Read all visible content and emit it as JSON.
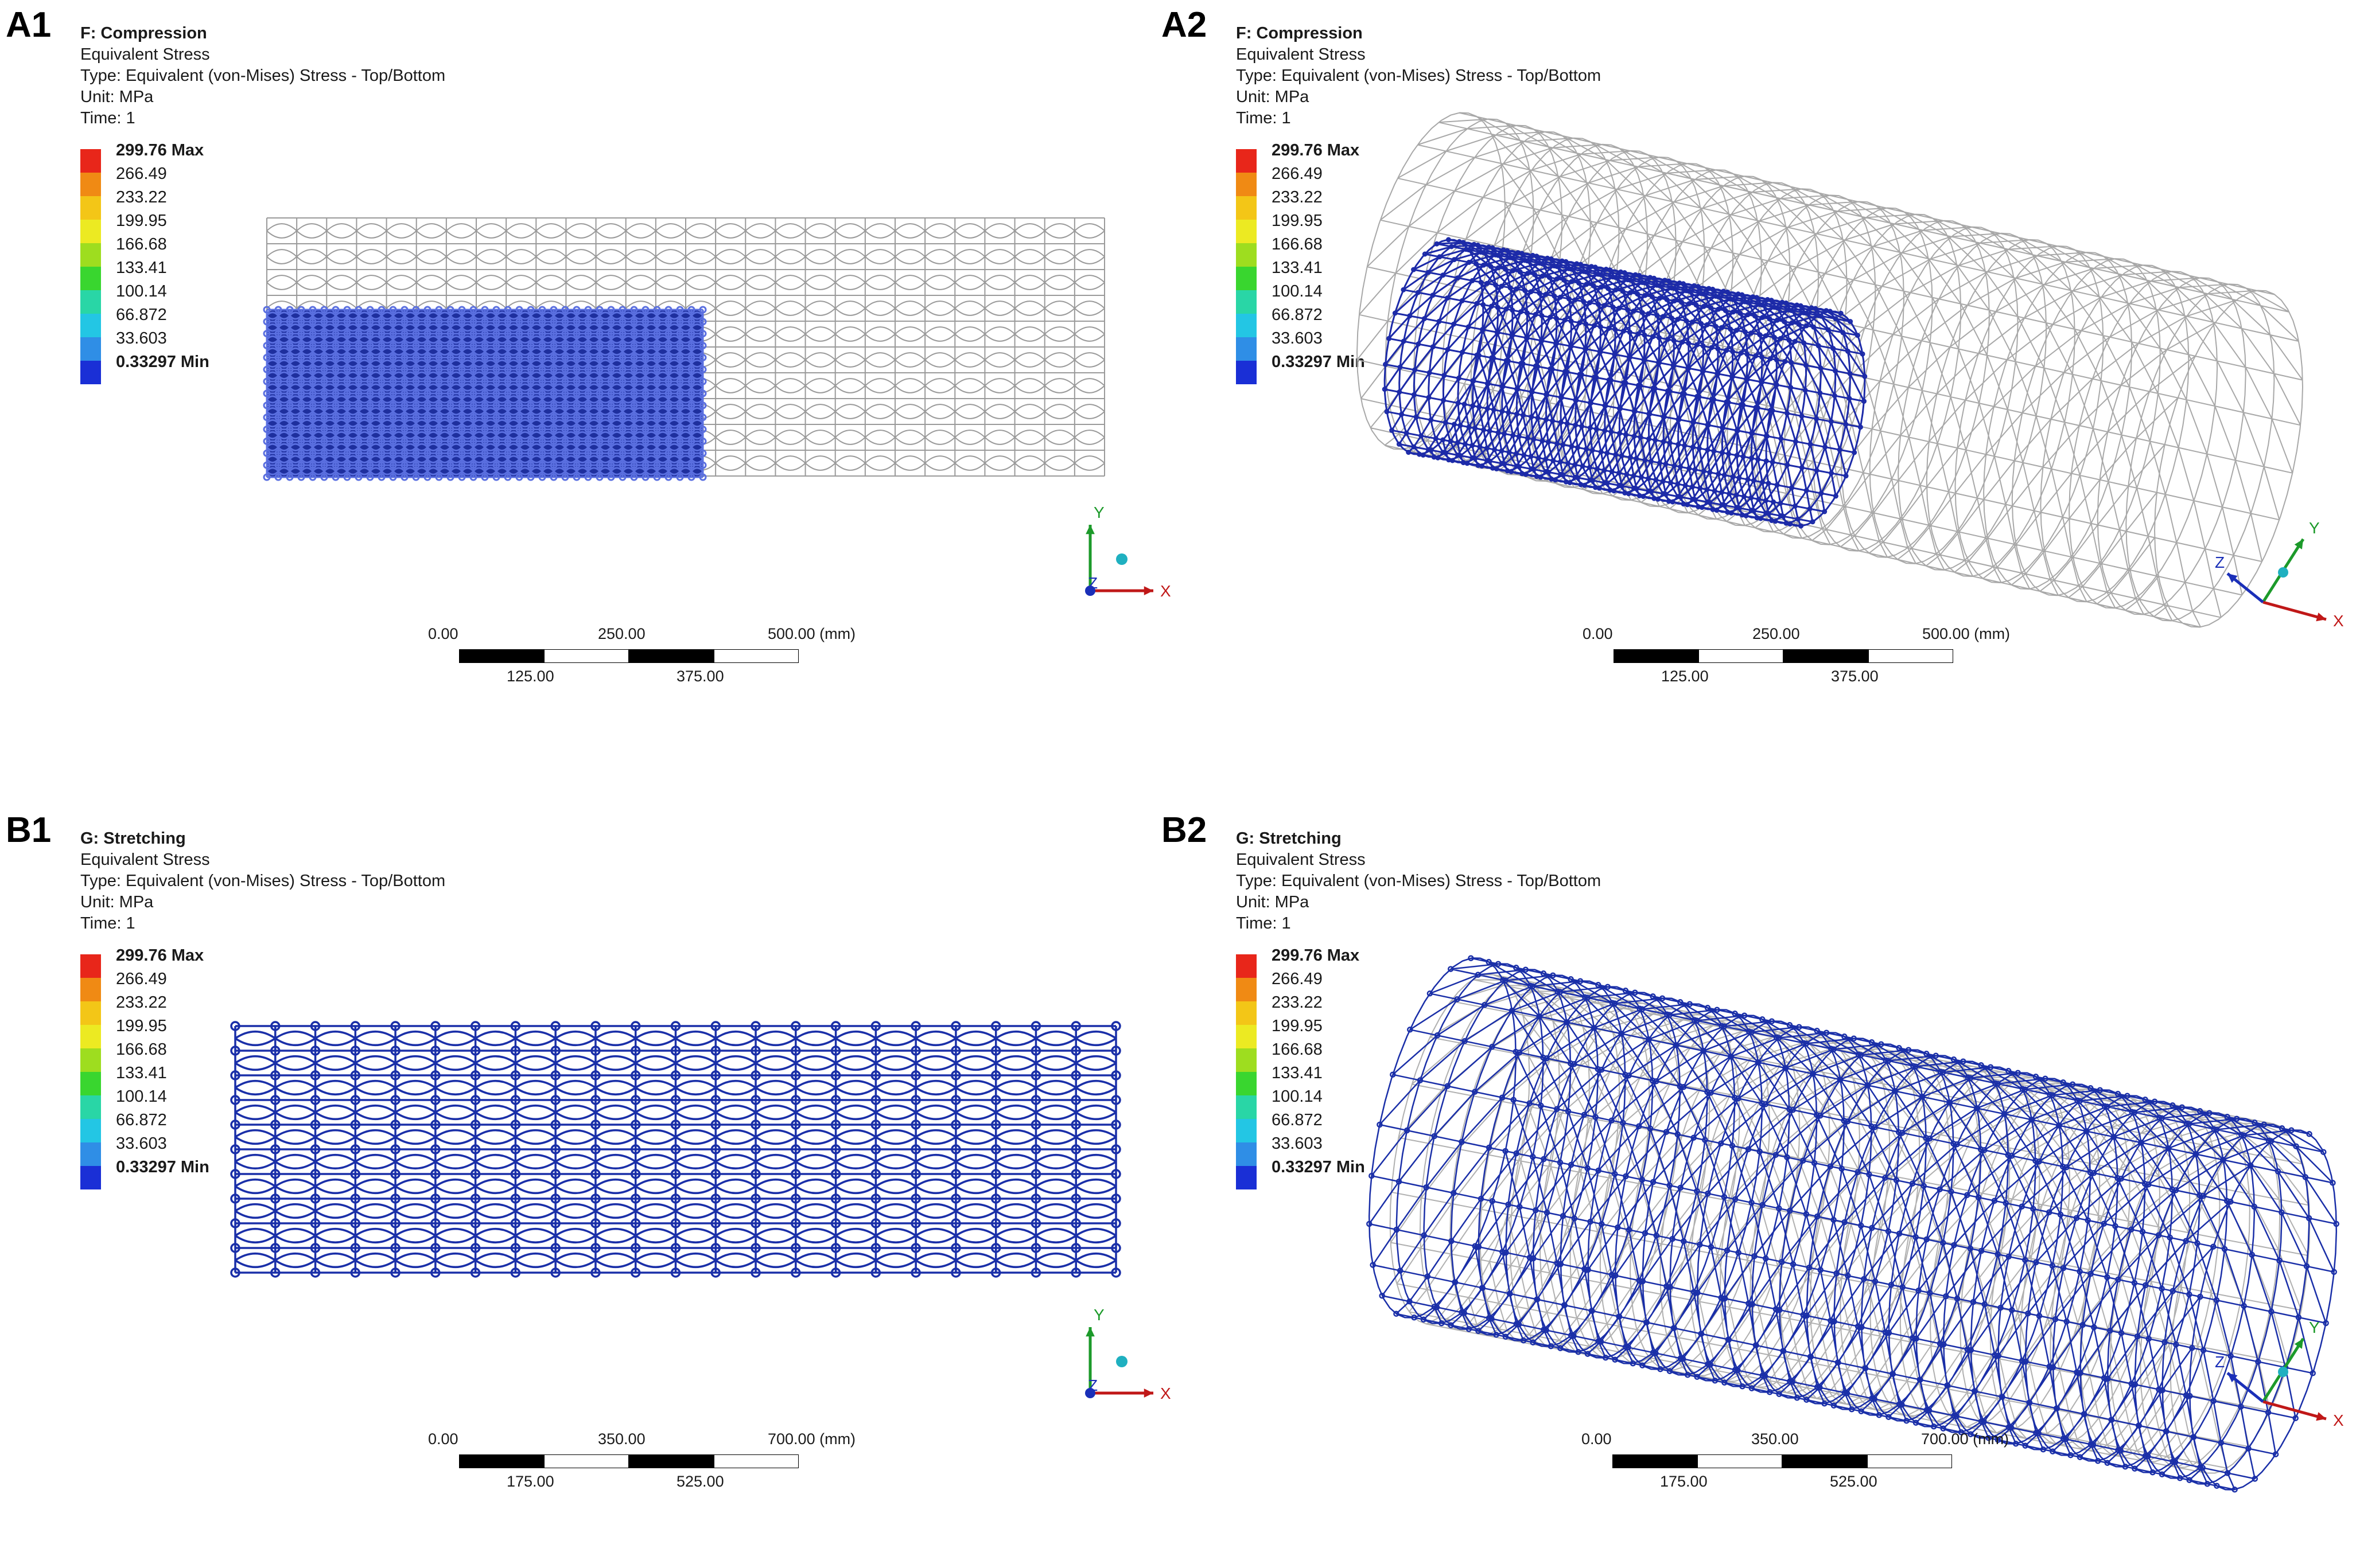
{
  "panels": [
    {
      "label": "A1",
      "title": "F: Compression",
      "subtitle": "Equivalent Stress",
      "type_line": "Type: Equivalent (von-Mises) Stress - Top/Bottom",
      "unit_line": "Unit: MPa",
      "time_line": "Time: 1",
      "view": "side",
      "scale": {
        "top": [
          "0.00",
          "250.00",
          "500.00 (mm)"
        ],
        "bottom": [
          "125.00",
          "375.00"
        ]
      }
    },
    {
      "label": "A2",
      "title": "F: Compression",
      "subtitle": "Equivalent Stress",
      "type_line": "Type: Equivalent (von-Mises) Stress - Top/Bottom",
      "unit_line": "Unit: MPa",
      "time_line": "Time: 1",
      "view": "iso",
      "scale": {
        "top": [
          "0.00",
          "250.00",
          "500.00 (mm)"
        ],
        "bottom": [
          "125.00",
          "375.00"
        ]
      }
    },
    {
      "label": "B1",
      "title": "G: Stretching",
      "subtitle": "Equivalent Stress",
      "type_line": "Type: Equivalent (von-Mises) Stress - Top/Bottom",
      "unit_line": "Unit: MPa",
      "time_line": "Time: 1",
      "view": "side",
      "scale": {
        "top": [
          "0.00",
          "350.00",
          "700.00 (mm)"
        ],
        "bottom": [
          "175.00",
          "525.00"
        ]
      }
    },
    {
      "label": "B2",
      "title": "G: Stretching",
      "subtitle": "Equivalent Stress",
      "type_line": "Type: Equivalent (von-Mises) Stress - Top/Bottom",
      "unit_line": "Unit: MPa",
      "time_line": "Time: 1",
      "view": "iso",
      "scale": {
        "top": [
          "0.00",
          "350.00",
          "700.00 (mm)"
        ],
        "bottom": [
          "175.00",
          "525.00"
        ]
      }
    }
  ],
  "legend": [
    {
      "value": "299.76 Max",
      "color": "#e8261a",
      "bold": true
    },
    {
      "value": "266.49",
      "color": "#f08a14"
    },
    {
      "value": "233.22",
      "color": "#f3c617"
    },
    {
      "value": "199.95",
      "color": "#ecea22"
    },
    {
      "value": "166.68",
      "color": "#9edd1f"
    },
    {
      "value": "133.41",
      "color": "#39d62f"
    },
    {
      "value": "100.14",
      "color": "#29d6a6"
    },
    {
      "value": "66.872",
      "color": "#23c6e4"
    },
    {
      "value": "33.603",
      "color": "#2f8ee6"
    },
    {
      "value": "0.33297 Min",
      "color": "#1a2fd6",
      "bold": true
    }
  ],
  "axes": {
    "x": "X",
    "y": "Y",
    "z": "Z"
  },
  "colors": {
    "stent_stress": "#1a2fa8",
    "stent_undeformed": "#9a9a9a",
    "axis_x": "#c01818",
    "axis_y": "#1c9a2a",
    "axis_z": "#1a2fb8"
  }
}
